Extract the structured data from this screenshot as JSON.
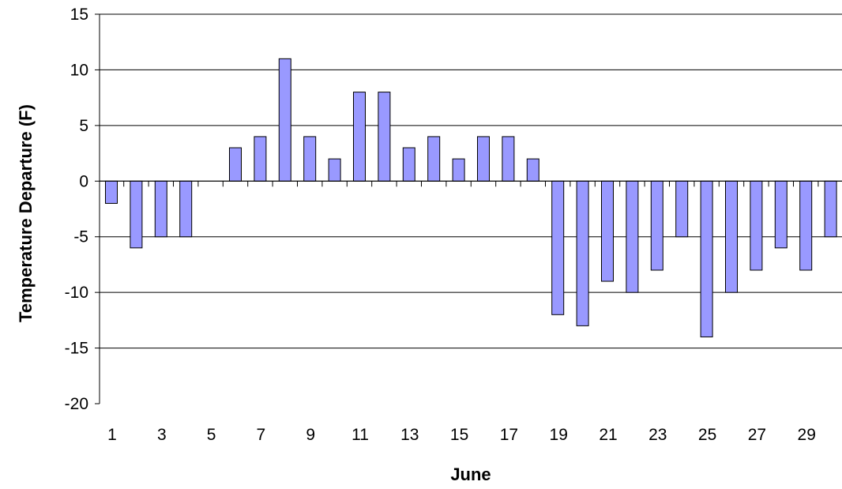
{
  "chart_data": {
    "type": "bar",
    "title": "",
    "xlabel": "June",
    "ylabel": "Temperature Departure (F)",
    "ylim": [
      -20,
      15
    ],
    "yticks": [
      15,
      10,
      5,
      0,
      -5,
      -10,
      -15,
      -20
    ],
    "categories": [
      "1",
      "2",
      "3",
      "4",
      "5",
      "6",
      "7",
      "8",
      "9",
      "10",
      "11",
      "12",
      "13",
      "14",
      "15",
      "16",
      "17",
      "18",
      "19",
      "20",
      "21",
      "22",
      "23",
      "24",
      "25",
      "26",
      "27",
      "28",
      "29",
      "30"
    ],
    "x_tick_labels": [
      "1",
      "3",
      "5",
      "7",
      "9",
      "11",
      "13",
      "15",
      "17",
      "19",
      "21",
      "23",
      "25",
      "27",
      "29"
    ],
    "values": [
      -2,
      -6,
      -5,
      -5,
      0,
      3,
      4,
      11,
      4,
      2,
      8,
      8,
      3,
      4,
      2,
      4,
      4,
      2,
      -12,
      -13,
      -9,
      -10,
      -8,
      -5,
      -14,
      -10,
      -8,
      -6,
      -8,
      -5
    ],
    "grid": true,
    "legend": "none",
    "bar_color": "#9999ff",
    "bar_edge_color": "#000000"
  }
}
